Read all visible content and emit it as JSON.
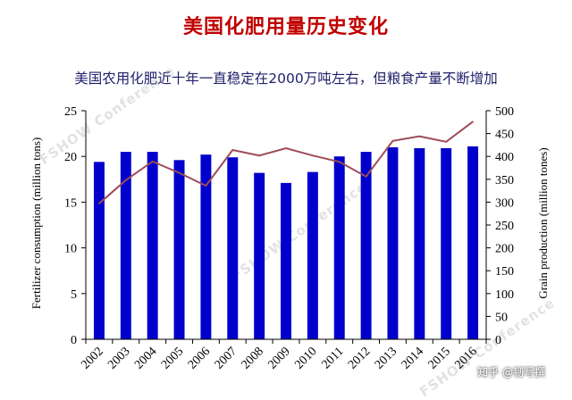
{
  "header": {
    "title": "美国化肥用量历史变化",
    "subtitle": "美国农用化肥近十年一直稳定在2000万吨左右，但粮食产量不断增加"
  },
  "watermark": {
    "text": "FSHOW Conference"
  },
  "credit": {
    "text": "知乎 @韧写撰"
  },
  "colors": {
    "bar": "#0000cc",
    "line": "#9e4b57",
    "title": "#c00000",
    "subtitle": "#1f1f6b"
  },
  "chart_data": {
    "type": "bar",
    "categories": [
      "2002",
      "2003",
      "2004",
      "2005",
      "2006",
      "2007",
      "2008",
      "2009",
      "2010",
      "2011",
      "2012",
      "2013",
      "2014",
      "2015",
      "2016"
    ],
    "series": [
      {
        "type": "bar",
        "axis": "left",
        "values": [
          19.4,
          20.5,
          20.5,
          19.6,
          20.2,
          19.9,
          18.2,
          17.1,
          18.3,
          20.0,
          20.5,
          21.0,
          20.9,
          20.9,
          21.1
        ]
      },
      {
        "type": "line",
        "axis": "right",
        "values": [
          297,
          348,
          389,
          364,
          336,
          414,
          402,
          418,
          402,
          388,
          356,
          434,
          444,
          432,
          476
        ]
      }
    ],
    "ylabel": "Fertilizer consumption (million tons)",
    "y2label": "Grain production (million tones)",
    "ylim": [
      0,
      25
    ],
    "y2lim": [
      0,
      500
    ],
    "yticks": [
      0,
      5,
      10,
      15,
      20,
      25
    ],
    "y2ticks": [
      0,
      50,
      100,
      150,
      200,
      250,
      300,
      350,
      400,
      450,
      500
    ],
    "grid": false,
    "legend": "none"
  }
}
